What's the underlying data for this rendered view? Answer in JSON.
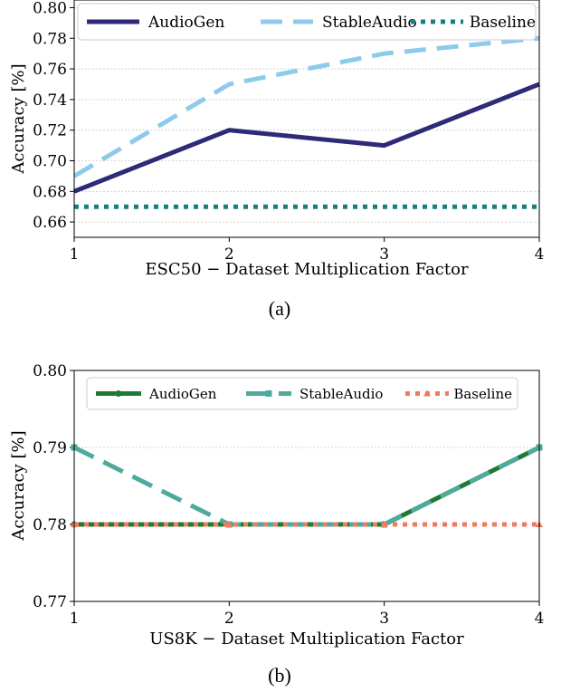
{
  "chart_data": [
    {
      "type": "line",
      "x": [
        1,
        2,
        3,
        4
      ],
      "xlabel": "ESC50 − Dataset Multiplication Factor",
      "ylabel": "Accuracy [%]",
      "xlim": [
        1,
        4
      ],
      "ylim": [
        0.65,
        0.805
      ],
      "xticks": [
        "1",
        "2",
        "3",
        "4"
      ],
      "yticks": [
        "0.66",
        "0.68",
        "0.70",
        "0.72",
        "0.74",
        "0.76",
        "0.78",
        "0.80"
      ],
      "grid": "horizontal",
      "legend": "top",
      "caption": "(a)",
      "series": [
        {
          "name": "AudioGen",
          "values": [
            0.68,
            0.72,
            0.71,
            0.75
          ],
          "color": "#2e2a78",
          "style": "solid"
        },
        {
          "name": "StableAudio",
          "values": [
            0.69,
            0.75,
            0.77,
            0.78
          ],
          "color": "#8ecbea",
          "style": "dashed"
        },
        {
          "name": "Baseline",
          "values": [
            0.67,
            0.67,
            0.67,
            0.67
          ],
          "color": "#17807e",
          "style": "dotted"
        }
      ]
    },
    {
      "type": "line",
      "x": [
        1,
        2,
        3,
        4
      ],
      "xlabel": "US8K − Dataset Multiplication Factor",
      "ylabel": "Accuracy [%]",
      "xlim": [
        1,
        4
      ],
      "ylim": [
        0.77,
        0.8
      ],
      "xticks": [
        "1",
        "2",
        "3",
        "4"
      ],
      "yticks": [
        "0.77",
        "0.78",
        "0.79",
        "0.80"
      ],
      "grid": "horizontal",
      "legend": "top-right",
      "caption": "(b)",
      "series": [
        {
          "name": "AudioGen",
          "values": [
            0.78,
            0.78,
            0.78,
            0.79
          ],
          "color": "#1e7a34",
          "style": "solid",
          "marker": "circle"
        },
        {
          "name": "StableAudio",
          "values": [
            0.79,
            0.78,
            0.78,
            0.79
          ],
          "color": "#4daa9c",
          "style": "dashed",
          "marker": "square"
        },
        {
          "name": "Baseline",
          "values": [
            0.78,
            0.78,
            0.78,
            0.78
          ],
          "color": "#f07a5f",
          "style": "dotted",
          "marker": "triangle"
        }
      ]
    }
  ]
}
